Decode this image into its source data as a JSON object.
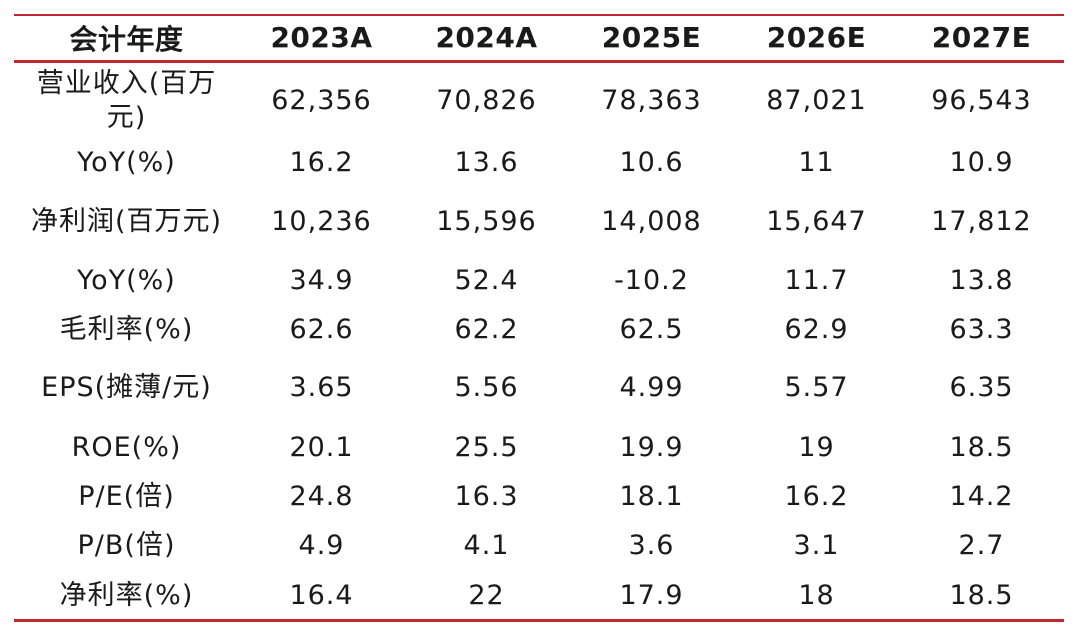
{
  "colors": {
    "accent": "#c0282f",
    "text": "#1a1a1a"
  },
  "table": {
    "headers": [
      "会计年度",
      "2023A",
      "2024A",
      "2025E",
      "2026E",
      "2027E"
    ],
    "rows": [
      {
        "label": "营业收入(百万元)",
        "values": [
          "62,356",
          "70,826",
          "78,363",
          "87,021",
          "96,543"
        ]
      },
      {
        "label": "YoY(%)",
        "values": [
          "16.2",
          "13.6",
          "10.6",
          "11",
          "10.9"
        ]
      },
      {
        "label": "净利润(百万元)",
        "values": [
          "10,236",
          "15,596",
          "14,008",
          "15,647",
          "17,812"
        ]
      },
      {
        "label": "YoY(%)",
        "values": [
          "34.9",
          "52.4",
          "-10.2",
          "11.7",
          "13.8"
        ]
      },
      {
        "label": "毛利率(%)",
        "values": [
          "62.6",
          "62.2",
          "62.5",
          "62.9",
          "63.3"
        ]
      },
      {
        "label": "EPS(摊薄/元)",
        "values": [
          "3.65",
          "5.56",
          "4.99",
          "5.57",
          "6.35"
        ]
      },
      {
        "label": "ROE(%)",
        "values": [
          "20.1",
          "25.5",
          "19.9",
          "19",
          "18.5"
        ]
      },
      {
        "label": "P/E(倍)",
        "values": [
          "24.8",
          "16.3",
          "18.1",
          "16.2",
          "14.2"
        ]
      },
      {
        "label": "P/B(倍)",
        "values": [
          "4.9",
          "4.1",
          "3.6",
          "3.1",
          "2.7"
        ]
      },
      {
        "label": "净利率(%)",
        "values": [
          "16.4",
          "22",
          "17.9",
          "18",
          "18.5"
        ]
      }
    ]
  }
}
